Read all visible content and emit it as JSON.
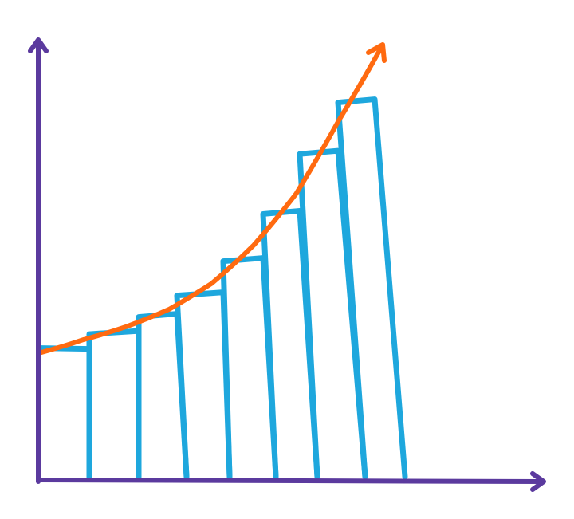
{
  "colors": {
    "axis": "#5b3a9e",
    "bars": "#1ea7dd",
    "trend": "#ff6a10",
    "background": "#ffffff"
  },
  "chart_data": {
    "type": "bar",
    "title": "",
    "xlabel": "",
    "ylabel": "",
    "grid": false,
    "legend": "none",
    "ylim": [
      0,
      10
    ],
    "series": [
      {
        "values": [
          3.0,
          3.4,
          3.8,
          4.3,
          5.1,
          6.2,
          7.6,
          8.8
        ]
      }
    ],
    "trend": {
      "type": "line",
      "shape": "exponential",
      "x": [
        0,
        1,
        2,
        3,
        4,
        5,
        6,
        7,
        8
      ],
      "values": [
        2.9,
        3.2,
        3.5,
        3.9,
        4.5,
        5.4,
        6.6,
        8.3,
        10.0
      ],
      "arrow": true
    }
  }
}
